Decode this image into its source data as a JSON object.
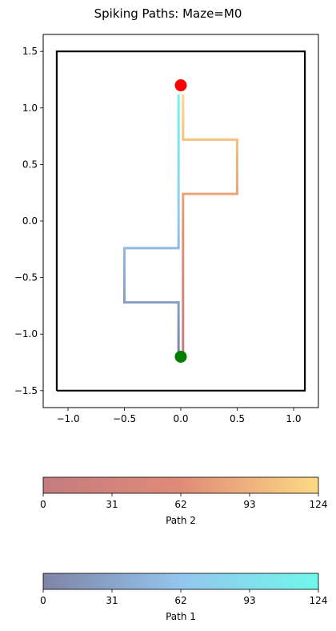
{
  "chart_data": [
    {
      "type": "line",
      "title": "Spiking Paths: Maze=M0",
      "xlim": [
        -1.22,
        1.22
      ],
      "ylim": [
        -1.65,
        1.65
      ],
      "xticks": [
        -1.0,
        -0.5,
        0.0,
        0.5,
        1.0
      ],
      "xtick_labels": [
        "−1.0",
        "−0.5",
        "0.0",
        "0.5",
        "1.0"
      ],
      "yticks": [
        1.5,
        1.0,
        0.5,
        0.0,
        -0.5,
        -1.0,
        -1.5
      ],
      "ytick_labels": [
        "1.5",
        "1.0",
        "0.5",
        "0.0",
        "−0.5",
        "−1.0",
        "−1.5"
      ],
      "grid": false,
      "maze_boundary": {
        "x": [
          -1.1,
          1.1,
          1.1,
          -1.1,
          -1.1
        ],
        "y": [
          -1.5,
          -1.5,
          1.5,
          1.5,
          -1.5
        ],
        "color": "#000000"
      },
      "start": {
        "x": 0.0,
        "y": -1.2,
        "color": "#008000"
      },
      "goal": {
        "x": 0.0,
        "y": 1.2,
        "color": "#ff0000"
      },
      "series": [
        {
          "colorbar_label": "Path 1",
          "x": [
            0.0,
            -0.02,
            -0.02,
            -0.5,
            -0.5,
            -0.02,
            -0.02,
            -0.02
          ],
          "y": [
            -1.2,
            -1.2,
            -0.72,
            -0.72,
            -0.24,
            -0.24,
            0.72,
            1.12
          ],
          "color_stops": [
            "#7e84a6",
            "#94c5ee",
            "#70f7ea"
          ]
        },
        {
          "colorbar_label": "Path 2",
          "x": [
            0.0,
            0.02,
            0.02,
            0.5,
            0.5,
            0.02,
            0.02,
            0.02
          ],
          "y": [
            -1.2,
            -1.2,
            0.24,
            0.24,
            0.72,
            0.72,
            1.12,
            1.12
          ],
          "color_stops": [
            "#c47c7e",
            "#e39375",
            "#fdda84"
          ]
        }
      ]
    },
    {
      "type": "colorbar",
      "label": "Path 2",
      "range": [
        0,
        124
      ],
      "ticks": [
        0,
        31,
        62,
        93,
        124
      ],
      "color_stops": [
        "#c47c7e",
        "#e08b78",
        "#fdda84"
      ]
    },
    {
      "type": "colorbar",
      "label": "Path 1",
      "range": [
        0,
        124
      ],
      "ticks": [
        0,
        31,
        62,
        93,
        124
      ],
      "color_stops": [
        "#7e84a6",
        "#94c5ee",
        "#70f7ea"
      ]
    }
  ]
}
